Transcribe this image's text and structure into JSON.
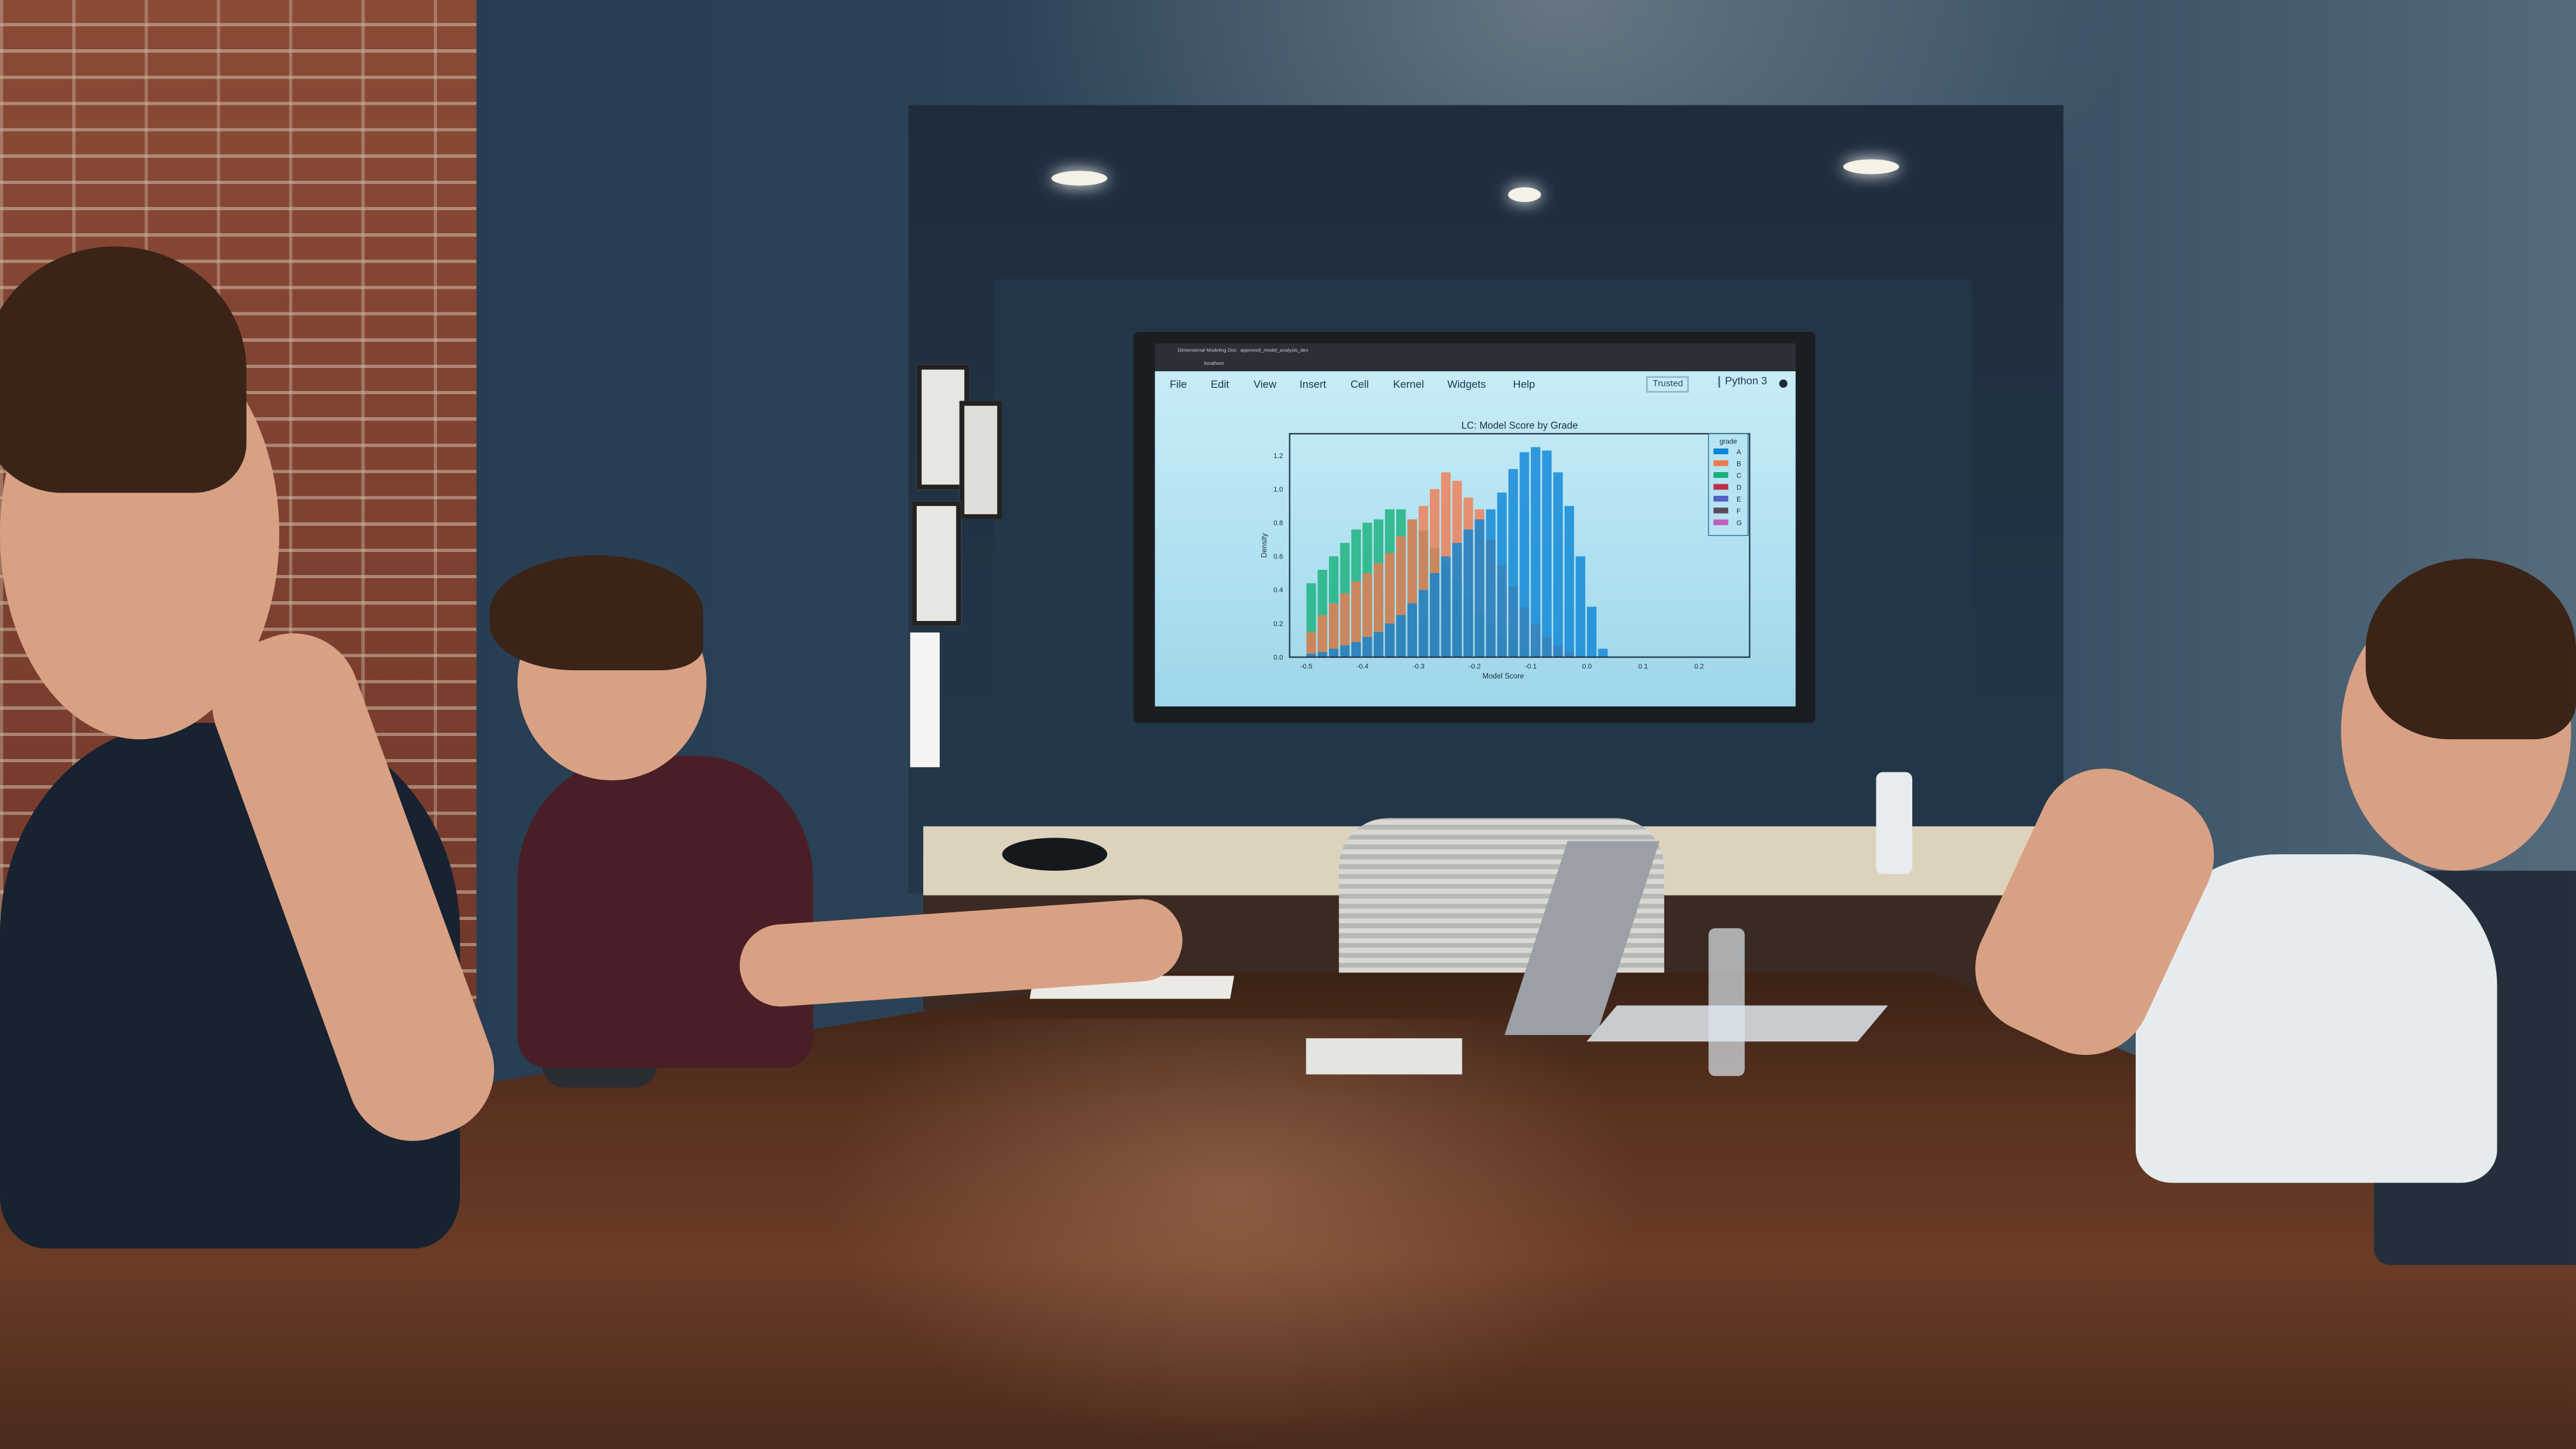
{
  "browser": {
    "tabs": [
      "Dimensional Modeling Doc",
      "approved_model_analysis_dev"
    ],
    "address": "localhost"
  },
  "notebook": {
    "menu": [
      "File",
      "Edit",
      "View",
      "Insert",
      "Cell",
      "Kernel",
      "Widgets",
      "Help"
    ],
    "trusted_label": "Trusted",
    "kernel_label": "Python 3"
  },
  "chart_data": {
    "type": "histogram",
    "title": "LC: Model Score by Grade",
    "xlabel": "Model Score",
    "ylabel": "Density",
    "xlim": [
      -0.53,
      0.29
    ],
    "ylim": [
      0,
      1.33
    ],
    "xticks": [
      "-0.5",
      "-0.4",
      "-0.3",
      "-0.2",
      "-0.1",
      "0.0",
      "0.1",
      "0.2"
    ],
    "xtick_values": [
      -0.5,
      -0.4,
      -0.3,
      -0.2,
      -0.1,
      0.0,
      0.1,
      0.2
    ],
    "yticks": [
      "0.0",
      "0.2",
      "0.4",
      "0.6",
      "0.8",
      "1.0",
      "1.2"
    ],
    "ytick_values": [
      0,
      0.2,
      0.4,
      0.6,
      0.8,
      1.0,
      1.2
    ],
    "grid": false,
    "legend": {
      "title": "grade",
      "placement": "top-right"
    },
    "bin_centers": [
      -0.49,
      -0.47,
      -0.45,
      -0.43,
      -0.41,
      -0.39,
      -0.37,
      -0.35,
      -0.33,
      -0.31,
      -0.29,
      -0.27,
      -0.25,
      -0.23,
      -0.21,
      -0.19,
      -0.17,
      -0.15,
      -0.13,
      -0.11,
      -0.09,
      -0.07,
      -0.05,
      -0.03,
      -0.01,
      0.01,
      0.03
    ],
    "series": [
      {
        "name": "A",
        "color": "#0a84d6",
        "values": [
          0.02,
          0.03,
          0.05,
          0.07,
          0.09,
          0.12,
          0.15,
          0.2,
          0.25,
          0.32,
          0.4,
          0.5,
          0.6,
          0.68,
          0.76,
          0.82,
          0.88,
          0.98,
          1.12,
          1.22,
          1.25,
          1.23,
          1.1,
          0.9,
          0.6,
          0.3,
          0.05
        ]
      },
      {
        "name": "B",
        "color": "#f07a50",
        "values": [
          0.15,
          0.25,
          0.32,
          0.38,
          0.45,
          0.5,
          0.56,
          0.62,
          0.72,
          0.82,
          0.9,
          1.0,
          1.1,
          1.05,
          0.95,
          0.88,
          0.7,
          0.55,
          0.42,
          0.3,
          0.2,
          0.12,
          0.07,
          0.03,
          0.01,
          0,
          0
        ]
      },
      {
        "name": "C",
        "color": "#17b07a",
        "values": [
          0.44,
          0.52,
          0.6,
          0.68,
          0.76,
          0.8,
          0.82,
          0.88,
          0.88,
          0.82,
          0.75,
          0.65,
          0.55,
          0.45,
          0.35,
          0.27,
          0.2,
          0.14,
          0.1,
          0.06,
          0.04,
          0.02,
          0.01,
          0,
          0,
          0,
          0
        ]
      },
      {
        "name": "D",
        "color": "#c0304a",
        "values": []
      },
      {
        "name": "E",
        "color": "#5560c8",
        "values": []
      },
      {
        "name": "F",
        "color": "#5a4a5a",
        "values": []
      },
      {
        "name": "G",
        "color": "#c060c0",
        "values": []
      }
    ]
  }
}
